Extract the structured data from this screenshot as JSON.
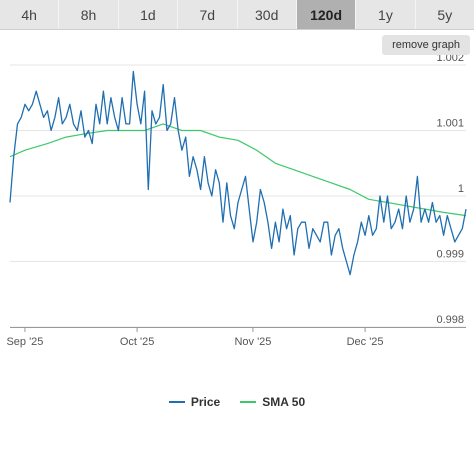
{
  "tabs": [
    {
      "label": "4h",
      "active": false
    },
    {
      "label": "8h",
      "active": false
    },
    {
      "label": "1d",
      "active": false
    },
    {
      "label": "7d",
      "active": false
    },
    {
      "label": "30d",
      "active": false
    },
    {
      "label": "120d",
      "active": true
    },
    {
      "label": "1y",
      "active": false
    },
    {
      "label": "5y",
      "active": false
    }
  ],
  "remove_graph_label": "remove graph",
  "chart_data": {
    "type": "line",
    "title": "",
    "xlabel": "",
    "ylabel": "",
    "ylim": [
      0.998,
      1.002
    ],
    "yticks": [
      {
        "value": 0.998,
        "label": "0.998"
      },
      {
        "value": 0.999,
        "label": "0.999"
      },
      {
        "value": 1.0,
        "label": "1"
      },
      {
        "value": 1.001,
        "label": "1.001"
      },
      {
        "value": 1.002,
        "label": "1.002"
      }
    ],
    "x_dates": [
      "2025-08-28",
      "2025-12-28"
    ],
    "xticks": [
      {
        "label": "Sep '25",
        "date": "2025-09-01"
      },
      {
        "label": "Oct '25",
        "date": "2025-10-01"
      },
      {
        "label": "Nov '25",
        "date": "2025-11-01"
      },
      {
        "label": "Dec '25",
        "date": "2025-12-01"
      }
    ],
    "grid": true,
    "legend_position": "bottom",
    "series": [
      {
        "name": "Price",
        "color": "#1f6fb2",
        "dates": [
          "2025-08-28",
          "2025-08-29",
          "2025-08-30",
          "2025-08-31",
          "2025-09-01",
          "2025-09-02",
          "2025-09-03",
          "2025-09-04",
          "2025-09-05",
          "2025-09-06",
          "2025-09-07",
          "2025-09-08",
          "2025-09-09",
          "2025-09-10",
          "2025-09-11",
          "2025-09-12",
          "2025-09-13",
          "2025-09-14",
          "2025-09-15",
          "2025-09-16",
          "2025-09-17",
          "2025-09-18",
          "2025-09-19",
          "2025-09-20",
          "2025-09-21",
          "2025-09-22",
          "2025-09-23",
          "2025-09-24",
          "2025-09-25",
          "2025-09-26",
          "2025-09-27",
          "2025-09-28",
          "2025-09-29",
          "2025-09-30",
          "2025-10-01",
          "2025-10-02",
          "2025-10-03",
          "2025-10-04",
          "2025-10-05",
          "2025-10-06",
          "2025-10-07",
          "2025-10-08",
          "2025-10-09",
          "2025-10-10",
          "2025-10-11",
          "2025-10-12",
          "2025-10-13",
          "2025-10-14",
          "2025-10-15",
          "2025-10-16",
          "2025-10-17",
          "2025-10-18",
          "2025-10-19",
          "2025-10-20",
          "2025-10-21",
          "2025-10-22",
          "2025-10-23",
          "2025-10-24",
          "2025-10-25",
          "2025-10-26",
          "2025-10-27",
          "2025-10-28",
          "2025-10-29",
          "2025-10-30",
          "2025-10-31",
          "2025-11-01",
          "2025-11-02",
          "2025-11-03",
          "2025-11-04",
          "2025-11-05",
          "2025-11-06",
          "2025-11-07",
          "2025-11-08",
          "2025-11-09",
          "2025-11-10",
          "2025-11-11",
          "2025-11-12",
          "2025-11-13",
          "2025-11-14",
          "2025-11-15",
          "2025-11-16",
          "2025-11-17",
          "2025-11-18",
          "2025-11-19",
          "2025-11-20",
          "2025-11-21",
          "2025-11-22",
          "2025-11-23",
          "2025-11-24",
          "2025-11-25",
          "2025-11-26",
          "2025-11-27",
          "2025-11-28",
          "2025-11-29",
          "2025-11-30",
          "2025-12-01",
          "2025-12-02",
          "2025-12-03",
          "2025-12-04",
          "2025-12-05",
          "2025-12-06",
          "2025-12-07",
          "2025-12-08",
          "2025-12-09",
          "2025-12-10",
          "2025-12-11",
          "2025-12-12",
          "2025-12-13",
          "2025-12-14",
          "2025-12-15",
          "2025-12-16",
          "2025-12-17",
          "2025-12-18",
          "2025-12-19",
          "2025-12-20",
          "2025-12-21",
          "2025-12-22",
          "2025-12-23",
          "2025-12-24",
          "2025-12-25",
          "2025-12-26",
          "2025-12-27",
          "2025-12-28"
        ],
        "values": [
          0.9999,
          1.0006,
          1.0011,
          1.0012,
          1.0014,
          1.0013,
          1.0014,
          1.0016,
          1.0014,
          1.0012,
          1.0013,
          1.001,
          1.0012,
          1.0015,
          1.0011,
          1.0012,
          1.0014,
          1.0011,
          1.001,
          1.0013,
          1.0009,
          1.001,
          1.0008,
          1.0014,
          1.0011,
          1.0016,
          1.0011,
          1.0015,
          1.0012,
          1.001,
          1.0015,
          1.0011,
          1.0011,
          1.0019,
          1.0014,
          1.0011,
          1.0016,
          1.0001,
          1.0013,
          1.0011,
          1.0012,
          1.0017,
          1.001,
          1.0011,
          1.0015,
          1.001,
          1.0007,
          1.0009,
          1.0003,
          1.0006,
          1.0004,
          1.0001,
          1.0006,
          1.0002,
          1.0,
          1.0004,
          1.0002,
          0.9996,
          1.0002,
          0.9997,
          0.9995,
          0.9999,
          1.0001,
          1.0003,
          0.9998,
          0.9993,
          0.9996,
          1.0001,
          0.9999,
          0.9996,
          0.9992,
          0.9996,
          0.9993,
          0.9998,
          0.9995,
          0.9997,
          0.9991,
          0.9995,
          0.9996,
          0.9996,
          0.9992,
          0.9995,
          0.9994,
          0.9993,
          0.9996,
          0.9996,
          0.9991,
          0.9994,
          0.9995,
          0.9992,
          0.999,
          0.9988,
          0.9991,
          0.9993,
          0.9996,
          0.9994,
          0.9997,
          0.9994,
          0.9995,
          1.0,
          0.9996,
          1.0,
          0.9995,
          0.9996,
          0.9998,
          0.9995,
          1.0,
          0.9996,
          0.9998,
          1.0003,
          0.9996,
          0.9998,
          0.9996,
          0.9999,
          0.9996,
          0.9997,
          0.9994,
          0.9997,
          0.9995,
          0.9993,
          0.9994,
          0.9995,
          0.9998
        ]
      },
      {
        "name": "SMA 50",
        "color": "#3cc96b",
        "dates": [
          "2025-08-28",
          "2025-09-01",
          "2025-09-07",
          "2025-09-12",
          "2025-09-17",
          "2025-09-23",
          "2025-09-28",
          "2025-10-03",
          "2025-10-08",
          "2025-10-13",
          "2025-10-18",
          "2025-10-23",
          "2025-10-28",
          "2025-11-02",
          "2025-11-07",
          "2025-11-12",
          "2025-11-17",
          "2025-11-22",
          "2025-11-27",
          "2025-12-02",
          "2025-12-07",
          "2025-12-12",
          "2025-12-17",
          "2025-12-22",
          "2025-12-28"
        ],
        "values": [
          1.0006,
          1.0007,
          1.0008,
          1.0009,
          1.00095,
          1.001,
          1.001,
          1.001,
          1.0011,
          1.001,
          1.001,
          1.0009,
          1.00085,
          1.0007,
          1.0005,
          1.0004,
          1.0003,
          1.0002,
          1.0001,
          0.99995,
          0.9999,
          0.99985,
          0.9998,
          0.99975,
          0.9997
        ]
      }
    ]
  }
}
